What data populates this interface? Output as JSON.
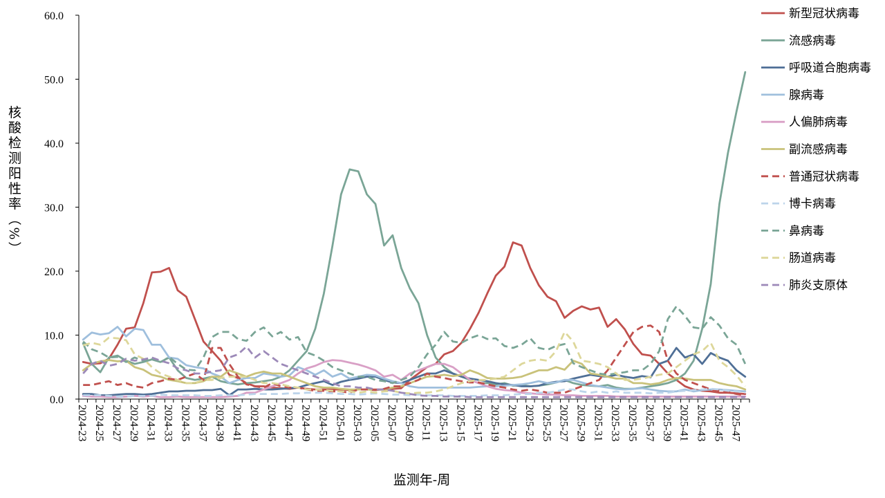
{
  "chart_data": {
    "type": "line",
    "title": "",
    "xlabel": "监测年-周",
    "ylabel": "核酸检测阳性率（%）",
    "ylim": [
      0,
      60
    ],
    "yticks": [
      "0.0",
      "10.0",
      "20.0",
      "30.0",
      "40.0",
      "50.0",
      "60.0"
    ],
    "grid": false,
    "legend_position": "right",
    "x": [
      "2024-23",
      "2024-24",
      "2024-25",
      "2024-26",
      "2024-27",
      "2024-28",
      "2024-29",
      "2024-30",
      "2024-31",
      "2024-32",
      "2024-33",
      "2024-34",
      "2024-35",
      "2024-36",
      "2024-37",
      "2024-38",
      "2024-39",
      "2024-40",
      "2024-41",
      "2024-42",
      "2024-43",
      "2024-44",
      "2024-45",
      "2024-46",
      "2024-47",
      "2024-48",
      "2024-49",
      "2024-50",
      "2024-51",
      "2024-52",
      "2025-01",
      "2025-02",
      "2025-03",
      "2025-04",
      "2025-05",
      "2025-06",
      "2025-07",
      "2025-08",
      "2025-09",
      "2025-10",
      "2025-11",
      "2025-12",
      "2025-13",
      "2025-14",
      "2025-15",
      "2025-16",
      "2025-17",
      "2025-18",
      "2025-19",
      "2025-20",
      "2025-21",
      "2025-22",
      "2025-23",
      "2025-24",
      "2025-25",
      "2025-26",
      "2025-27",
      "2025-28",
      "2025-29",
      "2025-30",
      "2025-31",
      "2025-32",
      "2025-33",
      "2025-34",
      "2025-35",
      "2025-36",
      "2025-37",
      "2025-38",
      "2025-39",
      "2025-40",
      "2025-41",
      "2025-42",
      "2025-43",
      "2025-44",
      "2025-45",
      "2025-46",
      "2025-47",
      "2025-48"
    ],
    "xtick_labels": [
      "2024-23",
      "2024-25",
      "2024-27",
      "2024-29",
      "2024-31",
      "2024-33",
      "2024-35",
      "2024-37",
      "2024-39",
      "2024-41",
      "2024-43",
      "2024-45",
      "2024-47",
      "2024-49",
      "2024-51",
      "2025-01",
      "2025-03",
      "2025-05",
      "2025-07",
      "2025-09",
      "2025-11",
      "2025-13",
      "2025-15",
      "2025-17",
      "2025-19",
      "2025-21",
      "2025-23",
      "2025-25",
      "2025-27",
      "2025-29",
      "2025-31",
      "2025-33",
      "2025-35",
      "2025-37",
      "2025-39",
      "2025-41",
      "2025-43",
      "2025-45",
      "2025-47"
    ],
    "series": [
      {
        "name": "新型冠状病毒",
        "color": "#c0504d",
        "dash": false,
        "values": [
          5.8,
          5.5,
          5.6,
          6.3,
          8.5,
          11,
          11.2,
          15,
          19.8,
          19.9,
          20.5,
          17,
          16,
          12.5,
          9,
          7.5,
          6,
          3.8,
          3.3,
          2.5,
          2,
          2,
          1.8,
          1.7,
          1.6,
          1.8,
          1.6,
          1.5,
          1.5,
          1.5,
          1.5,
          1.4,
          1.5,
          1.5,
          1.5,
          1.5,
          1.6,
          1.7,
          3,
          4,
          5,
          5.5,
          7,
          7.5,
          8.8,
          11,
          13.5,
          16.5,
          19.3,
          20.7,
          24.5,
          24,
          20.5,
          17.8,
          16,
          15.3,
          12.7,
          13.8,
          14.5,
          14,
          14.3,
          11.3,
          12.5,
          10.9,
          8.6,
          7,
          6.8,
          5.5,
          4,
          3,
          2,
          1.5,
          1.3,
          1.2,
          1,
          1,
          0.9,
          0.8
        ]
      },
      {
        "name": "流感病毒",
        "color": "#7aa596",
        "dash": false,
        "values": [
          8.7,
          5.5,
          4.2,
          6.5,
          6.8,
          6,
          5.5,
          5.8,
          6.2,
          5.8,
          6.5,
          4.5,
          3.3,
          3,
          3.2,
          3.5,
          2.8,
          2.5,
          2.3,
          2.5,
          2.6,
          2.8,
          3,
          3.5,
          4.5,
          6,
          7.5,
          11,
          16.5,
          24,
          32,
          35.9,
          35.6,
          32,
          30.5,
          24,
          25.6,
          20.5,
          17.3,
          15,
          10,
          6.5,
          5,
          4,
          3.5,
          3,
          2.5,
          2.5,
          2.3,
          2.5,
          2.1,
          2.2,
          2,
          2.1,
          2.3,
          2.6,
          3,
          2.5,
          2.2,
          2.1,
          2,
          2.2,
          1.8,
          1.6,
          1.6,
          1.8,
          2,
          2.2,
          2.5,
          3,
          4,
          6,
          11,
          18,
          30.5,
          38.5,
          45,
          51.1
        ]
      },
      {
        "name": "呼吸道合胞病毒",
        "color": "#4f6f96",
        "dash": false,
        "values": [
          0.8,
          0.8,
          0.6,
          0.6,
          0.7,
          0.8,
          0.8,
          0.7,
          0.8,
          1,
          1.2,
          1.2,
          1.3,
          1.3,
          1.4,
          1.4,
          1.6,
          0.6,
          1.5,
          1.5,
          1.6,
          1.5,
          1.5,
          1.6,
          1.7,
          1.8,
          2.2,
          2.5,
          2.8,
          2.2,
          2.7,
          3,
          3.2,
          3.5,
          3.5,
          3,
          2.6,
          2.5,
          3,
          3.5,
          4,
          4,
          4.5,
          4,
          3.5,
          3.2,
          3,
          2.8,
          2.5,
          2.3,
          2.2,
          2,
          2,
          2.1,
          2.5,
          2.7,
          2.8,
          3.2,
          3.5,
          3.8,
          3.6,
          3.5,
          3.8,
          3.5,
          3.3,
          3.6,
          3.4,
          5.5,
          6,
          8,
          6.5,
          7,
          5.5,
          7.2,
          6.5,
          6,
          4.5,
          3.5
        ]
      },
      {
        "name": "腺病毒",
        "color": "#9fbfdd",
        "dash": false,
        "values": [
          9.3,
          10.4,
          10.1,
          10.3,
          11.3,
          9.8,
          11,
          10.8,
          8.5,
          8.5,
          6.5,
          6.3,
          5.3,
          5,
          4.8,
          4,
          3.5,
          2.5,
          3,
          3.3,
          3.3,
          4,
          3.8,
          3.5,
          3.7,
          5,
          4.5,
          3.8,
          4.5,
          3.5,
          4,
          3.2,
          3.5,
          3.8,
          3.7,
          3.2,
          2.8,
          2.5,
          2,
          1.8,
          1.8,
          1.8,
          1.8,
          1.8,
          1.8,
          1.8,
          1.9,
          2,
          2,
          2.1,
          2.2,
          2.3,
          2.5,
          2.8,
          2.5,
          2.6,
          3,
          3,
          2.6,
          2.2,
          2,
          1.8,
          1.6,
          1.5,
          1.6,
          1.7,
          1.5,
          1.3,
          1.2,
          1.2,
          1.5,
          1.2,
          1.4,
          1.5,
          1.5,
          1.4,
          1.3,
          1.2
        ]
      },
      {
        "name": "人偏肺病毒",
        "color": "#d9a0c6",
        "dash": false,
        "values": [
          0.5,
          0.4,
          0.4,
          0.3,
          0.3,
          0.4,
          0.5,
          0.4,
          0.5,
          0.3,
          0.3,
          0.4,
          0.3,
          0.3,
          0.3,
          0.3,
          0.3,
          0.4,
          0.5,
          1,
          1,
          1.5,
          2,
          2.5,
          3,
          4,
          4.8,
          5.2,
          5.8,
          6.1,
          6,
          5.7,
          5.4,
          5,
          4.5,
          3.5,
          3.8,
          3,
          4,
          4.5,
          5,
          5.5,
          5.5,
          5,
          4,
          3,
          2.5,
          2,
          1.6,
          1.4,
          1.3,
          1,
          0.9,
          0.8,
          0.7,
          0.7,
          0.6,
          0.6,
          0.5,
          0.5,
          0.5,
          0.5,
          0.4,
          0.4,
          0.4,
          0.4,
          0.4,
          0.4,
          0.4,
          0.4,
          0.4,
          0.4,
          0.4,
          0.4,
          0.4,
          0.4,
          0.4,
          0.4
        ]
      },
      {
        "name": "副流感病毒",
        "color": "#c9c27a",
        "dash": false,
        "values": [
          4.5,
          5.5,
          5.9,
          6.1,
          5.9,
          6,
          5,
          4.6,
          3.8,
          3.5,
          3,
          2.8,
          2.5,
          2.5,
          2.8,
          3.5,
          3.5,
          4.5,
          4,
          3.5,
          4,
          4.3,
          4,
          4,
          3.5,
          3,
          2.5,
          2,
          1.8,
          1.8,
          1.6,
          1.5,
          1.5,
          1.5,
          1.4,
          1.5,
          1.8,
          2,
          2.5,
          3,
          3.5,
          3.6,
          3.8,
          3.6,
          3.8,
          4.5,
          4,
          3.3,
          3.2,
          3.2,
          3.3,
          3.5,
          4,
          4.5,
          4.5,
          5,
          4.6,
          6,
          5.5,
          4,
          3.8,
          3.5,
          3.2,
          3.2,
          2.5,
          2.5,
          2.3,
          2.5,
          3,
          3.3,
          3.2,
          3,
          3,
          3,
          2.5,
          2.2,
          2,
          1.5
        ]
      },
      {
        "name": "普通冠状病毒",
        "color": "#c0504d",
        "dash": true,
        "values": [
          2.2,
          2.2,
          2.5,
          2.8,
          2.2,
          2.5,
          2,
          1.8,
          2.5,
          2.8,
          3.2,
          3,
          3.5,
          4,
          3,
          8,
          8,
          5.5,
          3.5,
          2.3,
          2,
          1.8,
          2.5,
          2,
          1.8,
          1.8,
          1.5,
          1.3,
          1.3,
          1.2,
          1.2,
          1,
          1.5,
          1.5,
          1.4,
          1.6,
          2,
          2,
          2.5,
          3,
          4,
          3.5,
          3.3,
          3,
          2.8,
          2.6,
          2.6,
          2.3,
          2,
          1.8,
          1.5,
          1.3,
          1.5,
          1.3,
          1,
          1,
          1,
          1.5,
          2,
          2.5,
          3,
          4.5,
          6.5,
          8.5,
          10.5,
          11.3,
          11.5,
          10.5,
          6,
          4,
          3,
          2.5,
          2,
          1.5,
          1.3,
          1.1,
          0.8,
          0.6
        ]
      },
      {
        "name": "博卡病毒",
        "color": "#bcd4ea",
        "dash": true,
        "values": [
          0.6,
          0.6,
          0.6,
          0.5,
          0.4,
          0.4,
          0.5,
          0.5,
          0.5,
          0.7,
          0.6,
          0.6,
          0.6,
          0.6,
          0.5,
          0.5,
          0.6,
          0.6,
          0.6,
          0.7,
          0.8,
          0.8,
          0.8,
          0.8,
          0.9,
          0.9,
          1,
          1,
          1,
          0.9,
          0.8,
          0.8,
          0.7,
          0.8,
          0.9,
          0.8,
          0.7,
          0.7,
          0.6,
          0.7,
          0.6,
          0.6,
          0.6,
          0.5,
          0.5,
          0.5,
          0.5,
          0.6,
          0.6,
          0.6,
          0.7,
          0.8,
          0.8,
          1,
          1,
          1.2,
          1.5,
          1.5,
          1.2,
          1,
          1.2,
          1,
          1.2,
          1,
          1,
          1,
          0.9,
          1,
          1,
          1.2,
          1.3,
          1.4,
          1.5,
          1.6,
          1.5,
          1.3,
          1.2,
          1
        ]
      },
      {
        "name": "鼻病毒",
        "color": "#7aa596",
        "dash": true,
        "values": [
          9,
          7.8,
          7.3,
          6.5,
          6.6,
          5.8,
          6.5,
          6,
          6.5,
          5.7,
          6.6,
          5.5,
          4.6,
          4.5,
          6.5,
          9.7,
          10.5,
          10.5,
          9.4,
          9.1,
          10.5,
          11.2,
          9.8,
          10.5,
          9.3,
          9.7,
          7.3,
          6.8,
          6,
          5,
          4.5,
          4,
          3.5,
          3.5,
          3,
          2.8,
          2.5,
          3,
          3.5,
          5,
          7,
          8.5,
          10.5,
          9,
          8.8,
          9.5,
          10,
          9.4,
          9.5,
          8.3,
          8,
          8.5,
          9.5,
          8,
          7.7,
          8.3,
          8.6,
          5.6,
          5,
          4.5,
          4,
          3.8,
          4,
          4.2,
          4.5,
          4.5,
          5.5,
          7.5,
          12.5,
          14.5,
          13,
          11.2,
          11,
          12.8,
          11.5,
          9.5,
          8.5,
          5.5
        ]
      },
      {
        "name": "肠道病毒",
        "color": "#ddd79a",
        "dash": true,
        "values": [
          8.4,
          8.8,
          8.5,
          9.6,
          9.5,
          9.2,
          7,
          6.3,
          5,
          4,
          3.5,
          3,
          2.5,
          2.5,
          3,
          3,
          3.3,
          3.5,
          3.5,
          3.5,
          3,
          2.5,
          2.5,
          2.3,
          2,
          1.8,
          1.5,
          1.5,
          1.4,
          1.3,
          1.2,
          1.2,
          1,
          1.2,
          1,
          1.2,
          1.3,
          1,
          0.9,
          1,
          1,
          1.2,
          1.5,
          2,
          2.5,
          2.8,
          3,
          3,
          3.2,
          3.5,
          4.5,
          5.5,
          6,
          6.2,
          6,
          7.5,
          10.5,
          9,
          6,
          5.8,
          5.5,
          5,
          4,
          3,
          3,
          3.2,
          3.5,
          3.8,
          4,
          5,
          6,
          7,
          7.5,
          8.8,
          6,
          5,
          3.7,
          2
        ]
      },
      {
        "name": "肺炎支原体",
        "color": "#9c89b8",
        "dash": true,
        "values": [
          4,
          5.5,
          6,
          5.2,
          5.5,
          6.3,
          6,
          6.2,
          6.5,
          6,
          5.6,
          4.8,
          4.5,
          4,
          4,
          4.3,
          4.5,
          6.5,
          7,
          8.2,
          6.5,
          7.5,
          6.5,
          5.5,
          5,
          4.5,
          4,
          3.5,
          3,
          2.5,
          2,
          2,
          1.8,
          1.8,
          1.5,
          1.5,
          1.3,
          1,
          0.8,
          0.6,
          0.5,
          0.5,
          0.4,
          0.4,
          0.4,
          0.3,
          0.3,
          0.3,
          0.3,
          0.3,
          0.3,
          0.3,
          0.3,
          0.3,
          0.3,
          0.3,
          0.3,
          0.3,
          0.3,
          0.3,
          0.3,
          0.3,
          0.3,
          0.3,
          0.3,
          0.3,
          0.3,
          0.3,
          0.3,
          0.3,
          0.3,
          0.3,
          0.3,
          0.3,
          0.3,
          0.3,
          0.3,
          0.3
        ]
      }
    ]
  }
}
